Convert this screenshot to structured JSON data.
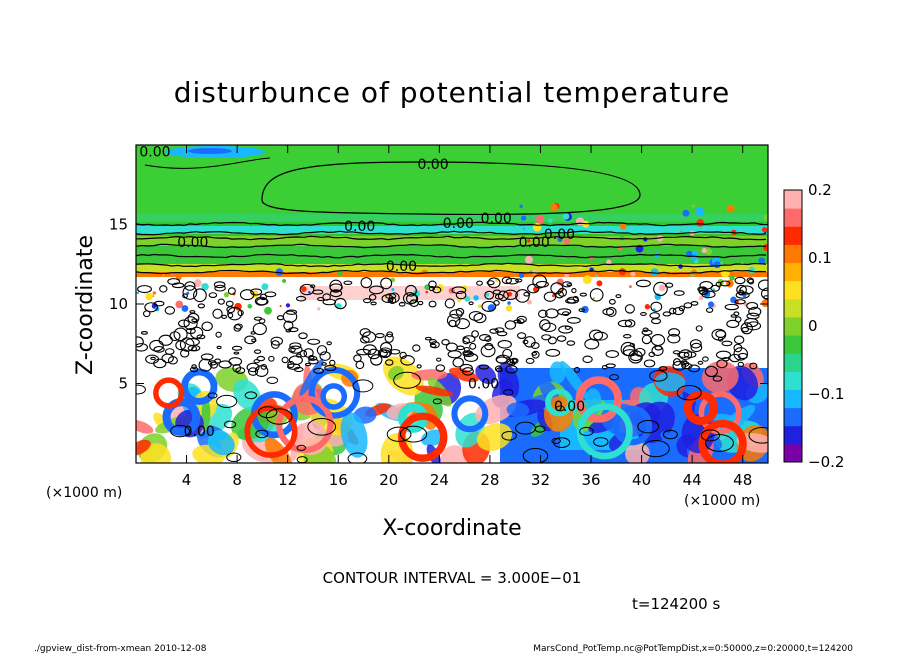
{
  "chart_data": {
    "type": "heatmap",
    "title": "disturbunce of potential temperature",
    "xlabel": "X-coordinate",
    "ylabel": "Z-coordinate",
    "x_unit": "(×1000 m)",
    "y_unit": "(×1000 m)",
    "xlim": [
      0,
      50
    ],
    "ylim": [
      0,
      20
    ],
    "x_ticks": [
      4,
      8,
      12,
      16,
      20,
      24,
      28,
      32,
      36,
      40,
      44,
      48
    ],
    "y_ticks": [
      5,
      10,
      15
    ],
    "colorbar": {
      "range": [
        -0.2,
        0.2
      ],
      "tick_labels": [
        "0.2",
        "0.1",
        "0",
        "−0.1",
        "−0.2"
      ],
      "tick_values": [
        0.2,
        0.1,
        0,
        -0.1,
        -0.2
      ],
      "colors": [
        "#7a00a8",
        "#2020e0",
        "#1a6cff",
        "#17b8ff",
        "#2ee0d0",
        "#2ad48a",
        "#3ac83a",
        "#7ed02a",
        "#c8e024",
        "#ffe020",
        "#ffb000",
        "#ff7800",
        "#ff2a00",
        "#ff6a6a",
        "#ffb0b0"
      ]
    },
    "contour_labels": [
      {
        "text": "0.00",
        "x": 1.5,
        "z": 19.6
      },
      {
        "text": "0.00",
        "x": 23.5,
        "z": 18.8
      },
      {
        "text": "0.00",
        "x": 17.7,
        "z": 14.9
      },
      {
        "text": "0.00",
        "x": 25.5,
        "z": 15.1
      },
      {
        "text": "0.00",
        "x": 28.5,
        "z": 15.4
      },
      {
        "text": "0.00",
        "x": 31.5,
        "z": 13.9
      },
      {
        "text": "0.00",
        "x": 33.5,
        "z": 14.4
      },
      {
        "text": "0.00",
        "x": 4.5,
        "z": 13.9
      },
      {
        "text": "0.00",
        "x": 21.0,
        "z": 12.4
      },
      {
        "text": "0.00",
        "x": 27.5,
        "z": 5.0
      },
      {
        "text": "0.00",
        "x": 34.3,
        "z": 3.6
      },
      {
        "text": "0.00",
        "x": 5.0,
        "z": 2.0
      }
    ],
    "contour_interval_text": "CONTOUR INTERVAL = 3.000E−01",
    "time_text": "t=124200 s"
  },
  "footer": {
    "left": "./gpview_dist-from-xmean   2010-12-08",
    "right": "MarsCond_PotTemp.nc@PotTempDist,x=0:50000,z=0:20000,t=124200"
  }
}
